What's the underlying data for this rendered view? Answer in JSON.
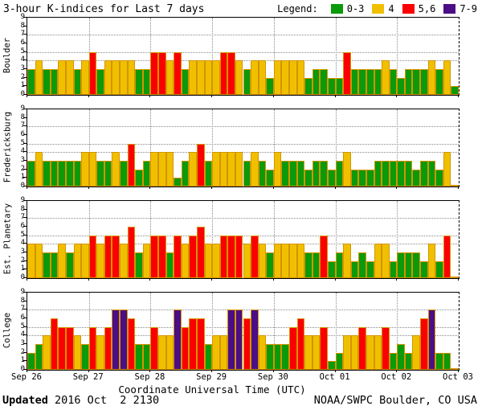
{
  "title": "3-hour K-indices for Last 7 days",
  "legend": {
    "label": "Legend:",
    "items": [
      {
        "label": "0-3",
        "color_key": "green"
      },
      {
        "label": "4",
        "color_key": "yellow"
      },
      {
        "label": "5,6",
        "color_key": "red"
      },
      {
        "label": "7-9",
        "color_key": "purple"
      }
    ]
  },
  "colors": {
    "green": "#0a9a0a",
    "yellow": "#f0c000",
    "red": "#fa0000",
    "purple": "#4b0e86",
    "bar_outline": "#d49400"
  },
  "x_axis_label": "Coordinate Universal Time (UTC)",
  "footer": {
    "updated_label": "Updated",
    "updated_value": " 2016 Oct  2 2130",
    "credit": "NOAA/SWPC Boulder, CO USA"
  },
  "chart_data": {
    "type": "bar",
    "title": "3-hour K-indices for Last 7 days",
    "bars_per_day": 8,
    "x_tick_labels": [
      "Sep 26",
      "Sep 27",
      "Sep 28",
      "Sep 29",
      "Sep 30",
      "Oct 01",
      "Oct 02",
      "Oct 03"
    ],
    "ylim": [
      0,
      9
    ],
    "y_ticks": [
      0,
      1,
      2,
      3,
      4,
      5,
      6,
      7,
      8,
      9
    ],
    "dotted_y_levels": [
      4,
      5,
      7
    ],
    "color_rule": {
      "0-3": "green",
      "4": "yellow",
      "5-6": "red",
      "7-9": "purple"
    },
    "panels": [
      {
        "station": "Boulder",
        "values": [
          3,
          4,
          3,
          3,
          4,
          4,
          3,
          4,
          5,
          3,
          4,
          4,
          4,
          4,
          3,
          3,
          5,
          5,
          4,
          5,
          3,
          4,
          4,
          4,
          4,
          5,
          5,
          4,
          3,
          4,
          4,
          2,
          4,
          4,
          4,
          4,
          2,
          3,
          3,
          2,
          2,
          5,
          3,
          3,
          3,
          3,
          4,
          3,
          2,
          3,
          3,
          3,
          4,
          3,
          4,
          1
        ]
      },
      {
        "station": "Fredericksburg",
        "values": [
          3,
          4,
          3,
          3,
          3,
          3,
          3,
          4,
          4,
          3,
          3,
          4,
          3,
          5,
          2,
          3,
          4,
          4,
          4,
          1,
          3,
          4,
          5,
          3,
          4,
          4,
          4,
          4,
          3,
          4,
          3,
          2,
          4,
          3,
          3,
          3,
          2,
          3,
          3,
          2,
          3,
          4,
          2,
          2,
          2,
          3,
          3,
          3,
          3,
          3,
          2,
          3,
          3,
          2,
          4,
          0
        ]
      },
      {
        "station": "Est. Planetary",
        "values": [
          4,
          4,
          3,
          3,
          4,
          3,
          4,
          4,
          5,
          4,
          5,
          5,
          4,
          6,
          3,
          4,
          5,
          5,
          3,
          5,
          4,
          5,
          6,
          4,
          4,
          5,
          5,
          5,
          4,
          5,
          4,
          3,
          4,
          4,
          4,
          4,
          3,
          3,
          5,
          2,
          3,
          4,
          2,
          3,
          2,
          4,
          4,
          2,
          3,
          3,
          3,
          2,
          4,
          2,
          5,
          0
        ]
      },
      {
        "station": "College",
        "values": [
          2,
          3,
          4,
          6,
          5,
          5,
          4,
          3,
          5,
          4,
          5,
          7,
          7,
          6,
          3,
          3,
          5,
          4,
          4,
          7,
          5,
          6,
          6,
          3,
          4,
          4,
          7,
          7,
          6,
          7,
          4,
          3,
          3,
          3,
          5,
          6,
          4,
          4,
          5,
          1,
          2,
          4,
          4,
          5,
          4,
          4,
          5,
          2,
          3,
          2,
          4,
          6,
          7,
          2,
          2,
          0
        ]
      }
    ]
  }
}
